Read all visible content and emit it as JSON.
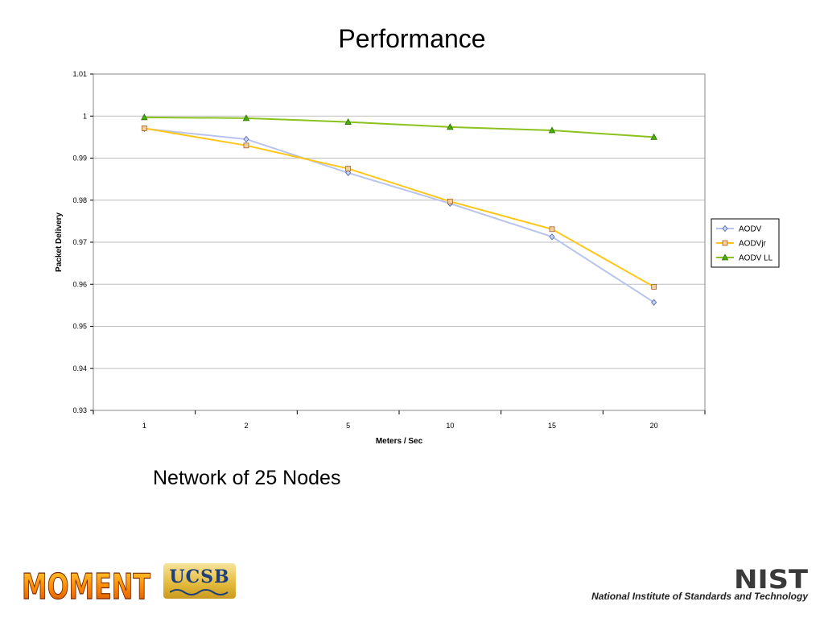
{
  "slide": {
    "title": "Performance",
    "caption": "Network of 25 Nodes"
  },
  "logos": {
    "moment": "MOMENT",
    "ucsb": "UCSB",
    "nist": "NIST",
    "nist_subtitle": "National Institute of Standards and Technology"
  },
  "chart_data": {
    "type": "line",
    "title": "",
    "xlabel": "Meters / Sec",
    "ylabel": "Packet Delivery",
    "categories": [
      "1",
      "2",
      "5",
      "10",
      "15",
      "20"
    ],
    "ylim": [
      0.93,
      1.01
    ],
    "yticks": [
      "0.93",
      "0.94",
      "0.95",
      "0.96",
      "0.97",
      "0.98",
      "0.99",
      "1",
      "1.01"
    ],
    "grid": true,
    "legend": "right",
    "series": [
      {
        "name": "AODV",
        "values": [
          0.997,
          0.9945,
          0.9865,
          0.9792,
          0.9713,
          0.9557
        ],
        "color": "#b8c4ee",
        "marker": "diamond",
        "marker_fill": "#c9d3f5",
        "marker_stroke": "#4a5fa8"
      },
      {
        "name": "AODVjr",
        "values": [
          0.9971,
          0.993,
          0.9875,
          0.9797,
          0.9731,
          0.9594
        ],
        "color": "#ffc61a",
        "marker": "square",
        "marker_fill": "#f5cfa0",
        "marker_stroke": "#a06020"
      },
      {
        "name": "AODV LL",
        "values": [
          0.9997,
          0.9995,
          0.9986,
          0.9974,
          0.9966,
          0.995
        ],
        "color": "#8cc21e",
        "marker": "triangle",
        "marker_fill": "#49b000",
        "marker_stroke": "#2a6e00"
      }
    ]
  }
}
